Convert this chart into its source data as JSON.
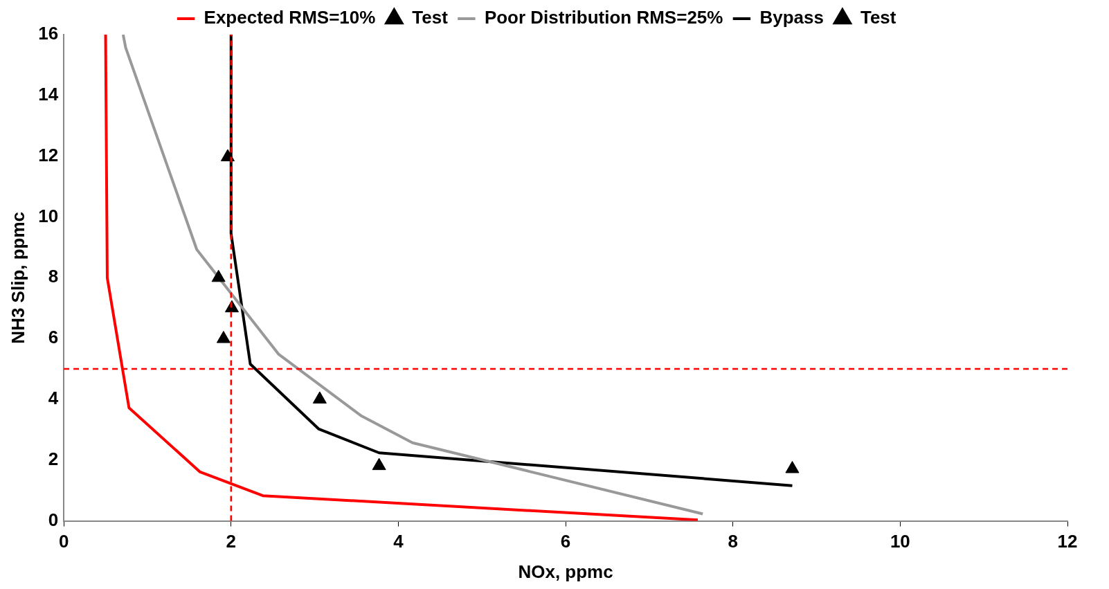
{
  "chart_data": {
    "type": "line",
    "xlabel": "NOx, ppmc",
    "ylabel": "NH3 Slip, ppmc",
    "xlim": [
      0,
      12
    ],
    "xticks": [
      0,
      2,
      4,
      6,
      8,
      10,
      12
    ],
    "ylim": [
      0,
      16
    ],
    "yticks": [
      0,
      2,
      4,
      6,
      8,
      10,
      12,
      14,
      16
    ],
    "grid": false,
    "legend": "top",
    "marker": "none",
    "line_style": "solid",
    "series": [
      {
        "name": "Expected RMS=10%",
        "color": "#ff0000",
        "x": [
          0.5,
          0.52,
          0.78,
          1.63,
          2.38,
          7.58
        ],
        "values": [
          16,
          8,
          3.72,
          1.61,
          0.83,
          0.03
        ]
      },
      {
        "name": "Test",
        "type": "scatter",
        "marker": "triangle",
        "color": "#000000",
        "x": [
          1.96,
          1.85,
          1.91,
          2.01
        ],
        "values": [
          11.97,
          8.0,
          5.99,
          7.0
        ]
      },
      {
        "name": "Poor Distribution RMS=25%",
        "color": "#999999",
        "x": [
          0.71,
          0.74,
          1.59,
          2.57,
          3.56,
          4.17,
          7.64
        ],
        "values": [
          16,
          15.57,
          8.93,
          5.48,
          3.45,
          2.57,
          0.23
        ]
      },
      {
        "name": "Bypass",
        "color": "#000000",
        "x": [
          2.0,
          2.0,
          2.23,
          3.05,
          3.77,
          8.71
        ],
        "values": [
          16,
          9.46,
          5.16,
          3.02,
          2.24,
          1.16
        ]
      },
      {
        "name": "Test",
        "type": "scatter",
        "marker": "triangle",
        "color": "#000000",
        "x": [
          3.06,
          3.77,
          8.71
        ],
        "values": [
          4.0,
          1.81,
          1.71
        ]
      }
    ],
    "ref_lines": [
      {
        "axis": "y",
        "value": 5,
        "color": "#ff0000",
        "line_style": "dashed"
      },
      {
        "axis": "x",
        "value": 2,
        "color": "#ff0000",
        "line_style": "dashed"
      }
    ]
  }
}
